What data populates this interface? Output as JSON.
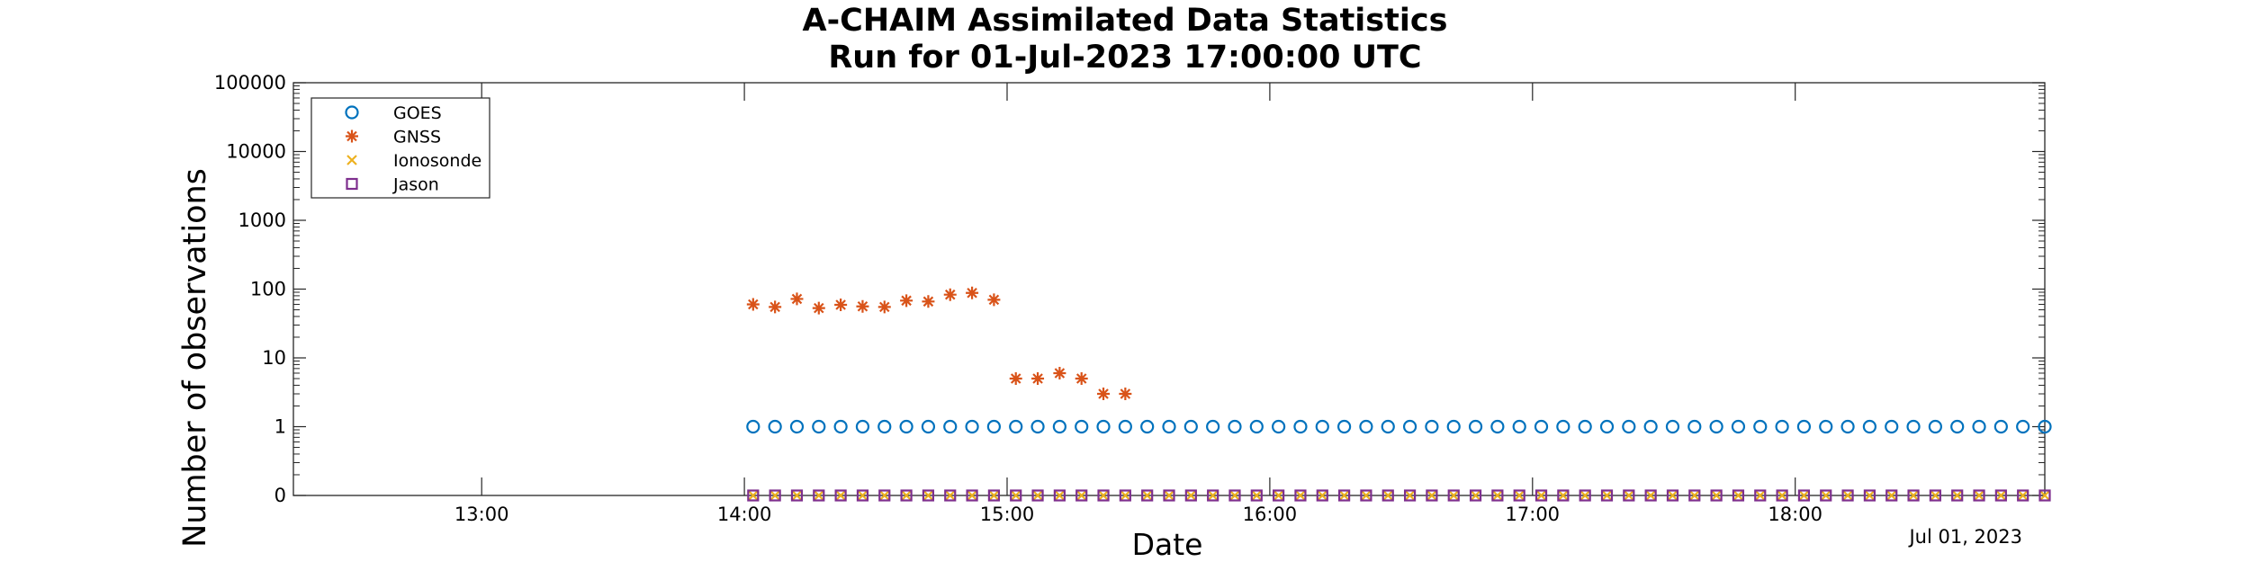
{
  "chart_data": {
    "type": "scatter",
    "title": "A-CHAIM Assimilated Data Statistics",
    "subtitle": "Run for 01-Jul-2023 17:00:00 UTC",
    "xlabel": "Date",
    "ylabel": "Number of observations",
    "x_axis_secondary_label": "Jul 01, 2023",
    "xlim": [
      "12:17",
      "18:57"
    ],
    "x_ticks": [
      "13:00",
      "14:00",
      "15:00",
      "16:00",
      "17:00",
      "18:00"
    ],
    "yscale": "log",
    "ylim": [
      0,
      100000
    ],
    "y_ticks": [
      "0",
      "1",
      "10",
      "100",
      "1000",
      "10000",
      "100000"
    ],
    "grid": false,
    "legend_location": "top-left",
    "interval_minutes": 5,
    "series": [
      {
        "name": "GOES",
        "marker": "circle",
        "color": "#0072BD",
        "start": "14:02",
        "values": [
          1,
          1,
          1,
          1,
          1,
          1,
          1,
          1,
          1,
          1,
          1,
          1,
          1,
          1,
          1,
          1,
          1,
          1,
          1,
          1,
          1,
          1,
          1,
          1,
          1,
          1,
          1,
          1,
          1,
          1,
          1,
          1,
          1,
          1,
          1,
          1,
          1,
          1,
          1,
          1,
          1,
          1,
          1,
          1,
          1,
          1,
          1,
          1,
          1,
          1,
          1,
          1,
          1,
          1,
          1,
          1,
          1,
          1,
          1,
          1
        ]
      },
      {
        "name": "GNSS",
        "marker": "asterisk",
        "color": "#D95319",
        "start": "14:02",
        "values": [
          60,
          55,
          72,
          53,
          59,
          56,
          55,
          68,
          66,
          83,
          88,
          70,
          5,
          5,
          6,
          5,
          3,
          3
        ]
      },
      {
        "name": "Ionosonde",
        "marker": "x",
        "color": "#EDB120",
        "start": "14:02",
        "values": [
          0,
          0,
          0,
          0,
          0,
          0,
          0,
          0,
          0,
          0,
          0,
          0,
          0,
          0,
          0,
          0,
          0,
          0,
          0,
          0,
          0,
          0,
          0,
          0,
          0,
          0,
          0,
          0,
          0,
          0,
          0,
          0,
          0,
          0,
          0,
          0,
          0,
          0,
          0,
          0,
          0,
          0,
          0,
          0,
          0,
          0,
          0,
          0,
          0,
          0,
          0,
          0,
          0,
          0,
          0,
          0,
          0,
          0,
          0,
          0
        ]
      },
      {
        "name": "Jason",
        "marker": "square",
        "color": "#7E2F8E",
        "start": "14:02",
        "values": [
          0,
          0,
          0,
          0,
          0,
          0,
          0,
          0,
          0,
          0,
          0,
          0,
          0,
          0,
          0,
          0,
          0,
          0,
          0,
          0,
          0,
          0,
          0,
          0,
          0,
          0,
          0,
          0,
          0,
          0,
          0,
          0,
          0,
          0,
          0,
          0,
          0,
          0,
          0,
          0,
          0,
          0,
          0,
          0,
          0,
          0,
          0,
          0,
          0,
          0,
          0,
          0,
          0,
          0,
          0,
          0,
          0,
          0,
          0,
          0
        ]
      }
    ]
  }
}
